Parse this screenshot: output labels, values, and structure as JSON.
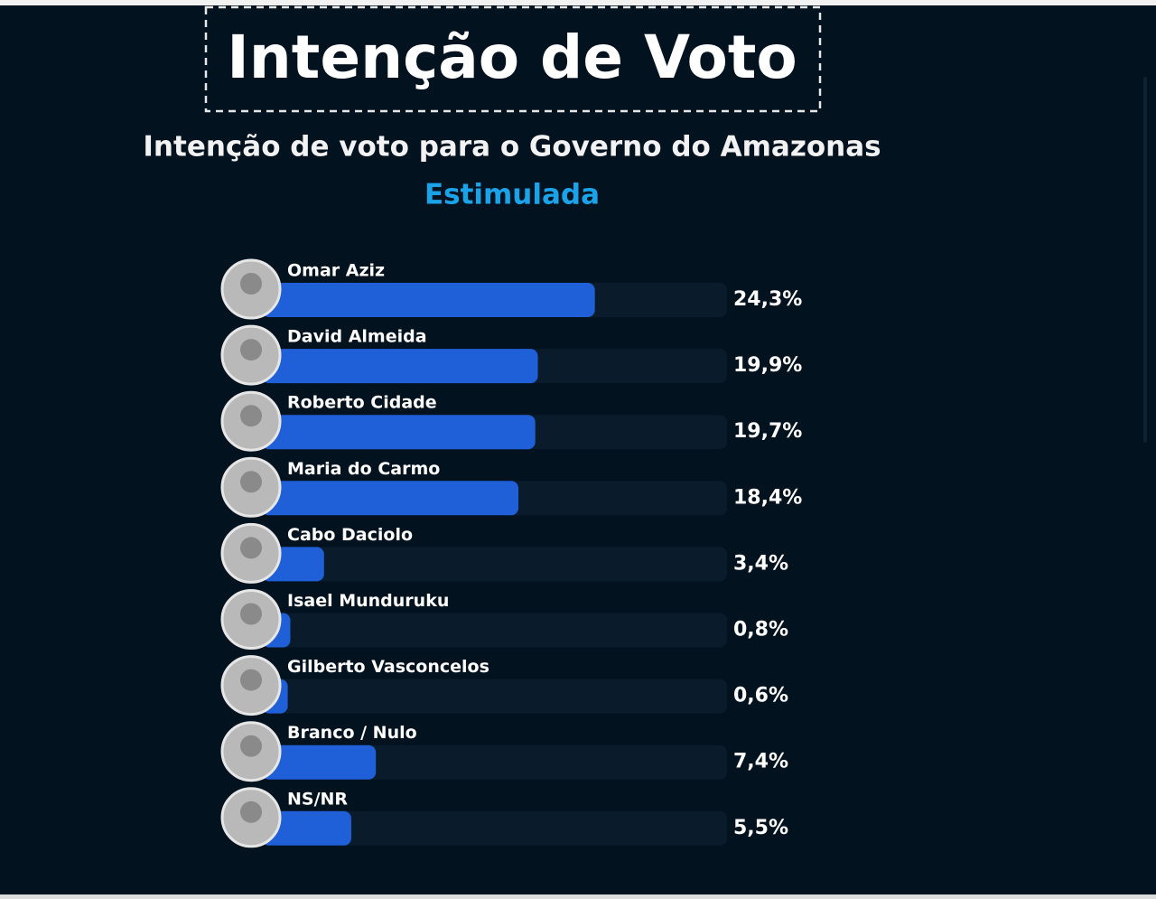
{
  "chart_data": {
    "type": "bar",
    "title": "Intenção de Voto",
    "subtitle": "Intenção de voto para o Governo do Amazonas",
    "annotation": "Estimulada",
    "categories": [
      "Omar Aziz",
      "David Almeida",
      "Roberto Cidade",
      "Maria do Carmo",
      "Cabo Daciolo",
      "Isael Munduruku",
      "Gilberto Vasconcelos",
      "Branco / Nulo",
      "NS/NR"
    ],
    "values": [
      24.3,
      19.9,
      19.7,
      18.4,
      3.4,
      0.8,
      0.6,
      7.4,
      5.5
    ],
    "value_labels": [
      "24,3%",
      "19,9%",
      "19,7%",
      "18,4%",
      "3,4%",
      "0,8%",
      "0,6%",
      "7,4%",
      "5,5%"
    ],
    "color": "#1f5fd8"
  }
}
